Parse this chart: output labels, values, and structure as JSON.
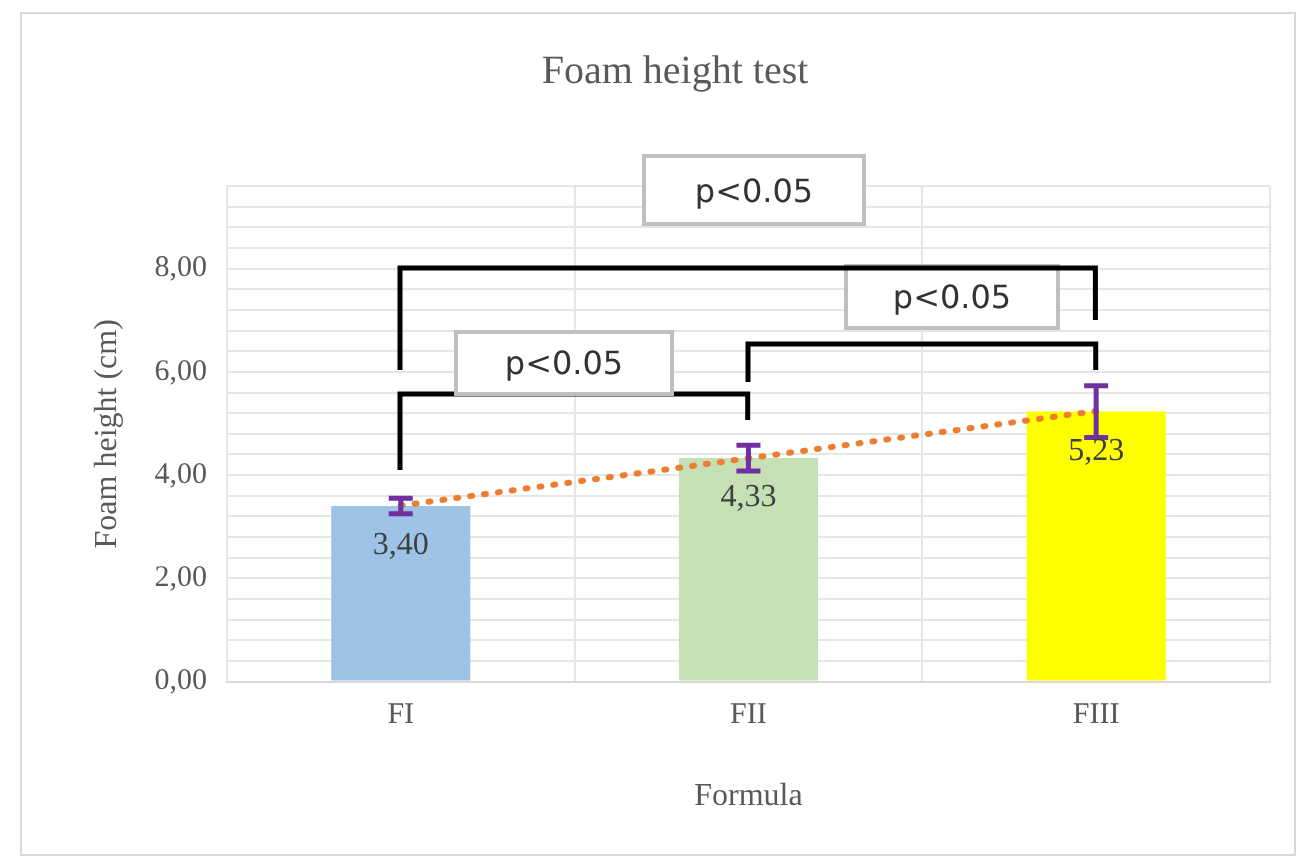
{
  "chart_data": {
    "type": "bar",
    "title": "Foam height test",
    "xlabel": "Formula",
    "ylabel": "Foam height (cm)",
    "categories": [
      "FI",
      "FII",
      "FIII"
    ],
    "series": [
      {
        "values": [
          3.4,
          4.33,
          5.23
        ],
        "colors": [
          "#9dc3e6",
          "#c5e0b4",
          "#ffff00"
        ],
        "errors": [
          0.15,
          0.25,
          0.5
        ],
        "value_labels": [
          "3,40",
          "4,33",
          "5,23"
        ]
      },
      {
        "type": "line",
        "x": [
          "FI",
          "FIII"
        ],
        "values": [
          3.41,
          5.24
        ],
        "color": "#ed7d31",
        "line_style": "dotted"
      }
    ],
    "ylim": [
      0,
      9.6
    ],
    "yticks": [
      {
        "value": 0,
        "label": "0,00"
      },
      {
        "value": 0.4,
        "label": null
      },
      {
        "value": 0.8,
        "label": null
      },
      {
        "value": 1.2,
        "label": null
      },
      {
        "value": 1.6,
        "label": null
      },
      {
        "value": 2,
        "label": "2,00"
      },
      {
        "value": 2.4,
        "label": null
      },
      {
        "value": 2.8,
        "label": null
      },
      {
        "value": 3.2,
        "label": null
      },
      {
        "value": 3.6,
        "label": null
      },
      {
        "value": 4,
        "label": "4,00"
      },
      {
        "value": 4.4,
        "label": null
      },
      {
        "value": 4.8,
        "label": null
      },
      {
        "value": 5.2,
        "label": null
      },
      {
        "value": 5.6,
        "label": null
      },
      {
        "value": 6,
        "label": "6,00"
      },
      {
        "value": 6.4,
        "label": null
      },
      {
        "value": 6.8,
        "label": null
      },
      {
        "value": 7.2,
        "label": null
      },
      {
        "value": 7.6,
        "label": null
      },
      {
        "value": 8,
        "label": "8,00"
      },
      {
        "value": 8.4,
        "label": null
      },
      {
        "value": 8.8,
        "label": null
      },
      {
        "value": 9.2,
        "label": null
      },
      {
        "value": 9.6,
        "label": null
      }
    ],
    "grid": true,
    "legend": false,
    "annotations": [
      "p<0.05",
      "p<0.05",
      "p<0.05"
    ]
  }
}
